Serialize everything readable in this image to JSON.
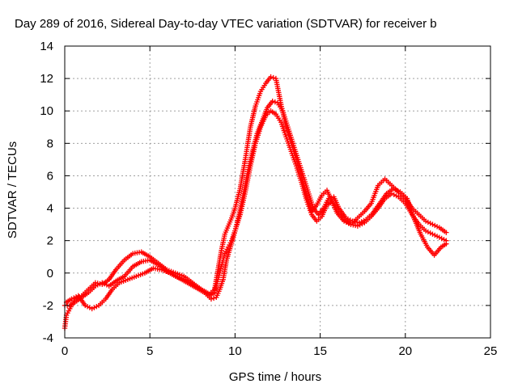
{
  "chart_data": {
    "type": "scatter",
    "title": "Day 289 of 2016, Sidereal Day-to-day VTEC variation (SDTVAR) for receiver b",
    "xlabel": "GPS time / hours",
    "ylabel": "SDTVAR / TECUs",
    "xlim": [
      0,
      25
    ],
    "ylim": [
      -4,
      14
    ],
    "x_ticks": [
      "0",
      "5",
      "10",
      "15",
      "20",
      "25"
    ],
    "y_ticks": [
      "-4",
      "-2",
      "0",
      "2",
      "4",
      "6",
      "8",
      "10",
      "12",
      "14"
    ],
    "grid": true,
    "legend": "none",
    "marker": "plus",
    "color": "#ff0000",
    "series": [
      {
        "x": [
          0,
          0.1,
          0.3,
          0.6,
          1.0,
          1.4,
          1.8,
          2.2,
          2.6,
          3.0,
          3.5,
          4.0,
          4.5,
          5.0,
          5.5,
          6.0,
          6.5,
          7.0,
          7.5,
          8.0,
          8.5,
          8.8,
          9.0,
          9.2,
          9.4,
          9.6,
          9.8,
          10.0,
          10.3,
          10.6,
          10.9,
          11.2,
          11.5,
          11.8,
          12.1,
          12.4,
          12.7,
          13.0,
          13.3,
          13.6,
          13.9,
          14.2,
          14.5,
          14.8,
          15.1,
          15.4,
          15.7,
          16.0,
          16.4,
          16.8,
          17.2,
          17.6,
          18.0,
          18.4,
          18.8,
          19.2,
          19.6,
          20.0,
          20.4,
          20.8,
          21.2,
          21.6,
          22.0,
          22.4
        ],
        "y": [
          -3.4,
          -2.6,
          -2.2,
          -1.6,
          -1.4,
          -1.0,
          -0.6,
          -0.7,
          -0.4,
          0.2,
          0.8,
          1.2,
          1.3,
          1.0,
          0.6,
          0.2,
          0.0,
          -0.2,
          -0.6,
          -1.0,
          -1.3,
          -1.0,
          0.2,
          1.4,
          2.4,
          2.9,
          3.4,
          4.0,
          5.2,
          7.0,
          9.0,
          10.3,
          11.2,
          11.7,
          12.1,
          12.0,
          10.4,
          9.0,
          8.0,
          7.0,
          6.0,
          4.8,
          3.8,
          4.2,
          4.8,
          5.1,
          4.4,
          3.7,
          3.2,
          3.0,
          3.4,
          3.8,
          4.3,
          5.4,
          5.8,
          5.4,
          5.0,
          4.6,
          4.0,
          3.6,
          3.2,
          3.0,
          2.8,
          2.5
        ]
      },
      {
        "x": [
          0,
          0.3,
          0.6,
          1.0,
          1.4,
          1.8,
          2.2,
          2.6,
          3.0,
          3.5,
          4.0,
          4.5,
          5.0,
          5.5,
          6.0,
          6.5,
          7.0,
          7.5,
          8.0,
          8.5,
          8.8,
          9.0,
          9.2,
          9.4,
          9.6,
          9.8,
          10.0,
          10.3,
          10.6,
          10.9,
          11.2,
          11.5,
          11.8,
          12.1,
          12.4,
          12.7,
          13.0,
          13.3,
          13.6,
          13.9,
          14.2,
          14.5,
          14.8,
          15.1,
          15.4,
          15.7,
          16.0,
          16.4,
          16.8,
          17.2,
          17.6,
          18.0,
          18.4,
          18.8,
          19.2,
          19.6,
          20.0,
          20.4,
          20.8,
          21.2,
          21.6,
          22.0,
          22.4
        ],
        "y": [
          -2.0,
          -2.0,
          -1.8,
          -1.5,
          -1.2,
          -0.8,
          -0.6,
          -0.8,
          -0.5,
          -0.2,
          0.4,
          0.7,
          0.8,
          0.5,
          0.1,
          -0.2,
          -0.4,
          -0.7,
          -1.0,
          -1.4,
          -1.2,
          -0.4,
          0.4,
          1.2,
          1.6,
          2.0,
          2.6,
          3.6,
          5.0,
          6.6,
          8.0,
          9.0,
          9.7,
          10.0,
          9.8,
          9.3,
          8.4,
          7.5,
          6.6,
          5.6,
          4.5,
          3.6,
          3.2,
          3.5,
          4.2,
          4.4,
          3.8,
          3.3,
          3.0,
          2.9,
          3.1,
          3.5,
          4.0,
          4.6,
          4.9,
          4.7,
          4.3,
          3.6,
          3.0,
          2.6,
          2.4,
          2.2,
          2.0
        ]
      },
      {
        "x": [
          0.1,
          0.4,
          0.8,
          1.2,
          1.6,
          2.0,
          2.4,
          2.8,
          3.2,
          3.7,
          4.2,
          4.7,
          5.2,
          5.7,
          6.2,
          6.7,
          7.2,
          7.7,
          8.2,
          8.6,
          8.9,
          9.1,
          9.3,
          9.5,
          9.7,
          9.9,
          10.1,
          10.4,
          10.7,
          11.0,
          11.3,
          11.6,
          11.9,
          12.2,
          12.5,
          12.8,
          13.1,
          13.4,
          13.7,
          14.0,
          14.3,
          14.6,
          14.9,
          15.2,
          15.5,
          15.8,
          16.1,
          16.5,
          16.9,
          17.3,
          17.7,
          18.1,
          18.5,
          18.9,
          19.3,
          19.7,
          20.1,
          20.5,
          20.9,
          21.3,
          21.7,
          22.1,
          22.4
        ],
        "y": [
          -1.8,
          -1.6,
          -1.4,
          -2.0,
          -2.2,
          -2.0,
          -1.6,
          -1.0,
          -0.6,
          -0.4,
          -0.2,
          0.0,
          0.3,
          0.2,
          0.0,
          -0.3,
          -0.6,
          -0.9,
          -1.2,
          -1.6,
          -1.5,
          -1.0,
          -0.4,
          0.8,
          1.5,
          2.2,
          3.0,
          4.4,
          6.0,
          7.4,
          8.6,
          9.4,
          10.2,
          10.6,
          10.5,
          10.0,
          9.0,
          8.0,
          7.0,
          6.0,
          5.0,
          4.0,
          3.6,
          4.0,
          4.6,
          4.7,
          4.0,
          3.4,
          3.2,
          3.1,
          3.3,
          3.7,
          4.3,
          4.9,
          5.2,
          5.0,
          4.6,
          3.4,
          2.4,
          1.6,
          1.1,
          1.6,
          1.8
        ]
      }
    ]
  }
}
